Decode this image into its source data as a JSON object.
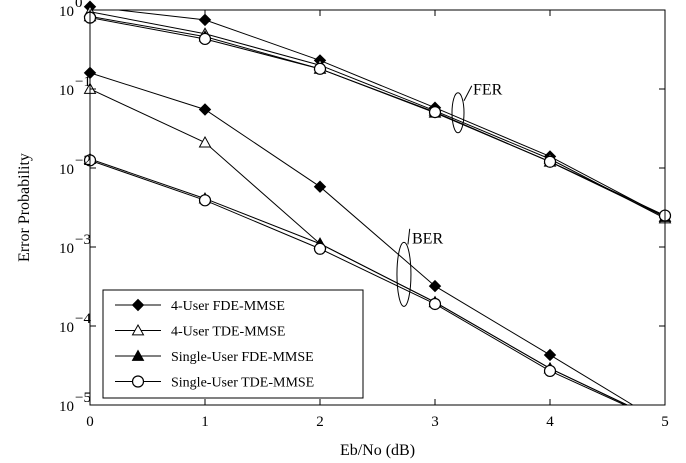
{
  "chart_data": {
    "type": "line",
    "xlabel": "Eb/No (dB)",
    "ylabel": "Error Probability",
    "xlim": [
      0,
      5
    ],
    "ylim": [
      1e-05,
      1
    ],
    "yscale": "log",
    "x_ticks": [
      "0",
      "1",
      "2",
      "3",
      "4",
      "5"
    ],
    "y_ticks": [
      {
        "base": "10",
        "exp": "0",
        "value": 1
      },
      {
        "base": "10",
        "exp": "−1",
        "value": 0.1
      },
      {
        "base": "10",
        "exp": "−2",
        "value": 0.01
      },
      {
        "base": "10",
        "exp": "−3",
        "value": 0.001
      },
      {
        "base": "10",
        "exp": "−4",
        "value": 0.0001
      },
      {
        "base": "10",
        "exp": "−5",
        "value": 1e-05
      }
    ],
    "grid": false,
    "legend_position": "bottom-left",
    "annotations": [
      "FER",
      "BER"
    ],
    "series": [
      {
        "name": "4-User FDE-MMSE",
        "metric": "FER",
        "marker": "diamond-filled",
        "x": [
          0,
          1,
          2,
          3,
          4,
          5
        ],
        "y": [
          1.1,
          0.75,
          0.23,
          0.058,
          0.014,
          0.0024
        ]
      },
      {
        "name": "4-User TDE-MMSE",
        "metric": "FER",
        "marker": "triangle-open",
        "x": [
          0,
          1,
          2,
          3,
          4,
          5
        ],
        "y": [
          0.95,
          0.5,
          0.2,
          0.053,
          0.013,
          0.0023
        ]
      },
      {
        "name": "Single-User FDE-MMSE",
        "metric": "FER",
        "marker": "triangle-filled",
        "x": [
          0,
          1,
          2,
          3,
          4,
          5
        ],
        "y": [
          0.83,
          0.46,
          0.18,
          0.05,
          0.012,
          0.0024
        ]
      },
      {
        "name": "Single-User TDE-MMSE",
        "metric": "FER",
        "marker": "circle-open",
        "x": [
          0,
          1,
          2,
          3,
          4,
          5
        ],
        "y": [
          0.8,
          0.43,
          0.18,
          0.051,
          0.012,
          0.0025
        ]
      },
      {
        "name": "4-User FDE-MMSE",
        "metric": "BER",
        "marker": "diamond-filled",
        "x": [
          0,
          1,
          2,
          3,
          4,
          4.72
        ],
        "y": [
          0.16,
          0.055,
          0.0058,
          0.00032,
          4.3e-05,
          1e-05
        ]
      },
      {
        "name": "4-User TDE-MMSE",
        "metric": "BER",
        "marker": "triangle-open",
        "x": [
          0,
          1,
          2,
          3,
          4,
          4.67
        ],
        "y": [
          0.1,
          0.021,
          0.0011,
          0.0002,
          2.9e-05,
          1e-05
        ]
      },
      {
        "name": "Single-User FDE-MMSE",
        "metric": "BER",
        "marker": "triangle-filled",
        "x": [
          0,
          1,
          2,
          3,
          4,
          4.67
        ],
        "y": [
          0.013,
          0.0041,
          0.0011,
          0.0002,
          2.9e-05,
          1e-05
        ]
      },
      {
        "name": "Single-User TDE-MMSE",
        "metric": "BER",
        "marker": "circle-open",
        "x": [
          0,
          1,
          2,
          3,
          4,
          4.65
        ],
        "y": [
          0.0125,
          0.0039,
          0.00095,
          0.00019,
          2.7e-05,
          1e-05
        ]
      }
    ],
    "legend": [
      {
        "label": "4-User FDE-MMSE",
        "marker": "diamond-filled"
      },
      {
        "label": "4-User TDE-MMSE",
        "marker": "triangle-open"
      },
      {
        "label": "Single-User FDE-MMSE",
        "marker": "triangle-filled"
      },
      {
        "label": "Single-User TDE-MMSE",
        "marker": "circle-open"
      }
    ]
  }
}
